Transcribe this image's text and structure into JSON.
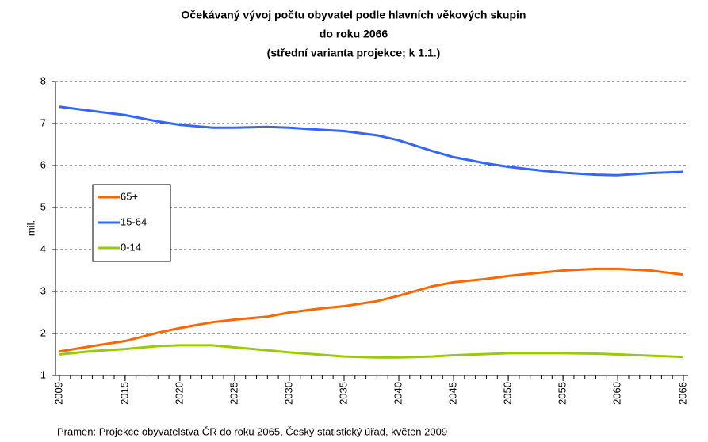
{
  "chart_data": {
    "type": "line",
    "title": [
      "Očekávaný vývoj počtu obyvatel podle hlavních věkových skupin",
      "do roku 2066",
      "(střední varianta projekce; k 1.1.)"
    ],
    "y_label": "mil.",
    "source": "Pramen: Projekce obyvatelstva ČR do roku 2065, Český statistický úřad, květen 2009",
    "x": [
      2009,
      2012,
      2015,
      2018,
      2020,
      2023,
      2025,
      2028,
      2030,
      2033,
      2035,
      2038,
      2040,
      2043,
      2045,
      2048,
      2050,
      2053,
      2055,
      2058,
      2060,
      2063,
      2066
    ],
    "series": [
      {
        "name": "65+",
        "color": "#ff6600",
        "values": [
          1.57,
          1.7,
          1.82,
          2.02,
          2.13,
          2.27,
          2.33,
          2.4,
          2.5,
          2.6,
          2.65,
          2.77,
          2.9,
          3.12,
          3.22,
          3.3,
          3.37,
          3.45,
          3.5,
          3.54,
          3.54,
          3.5,
          3.4
        ]
      },
      {
        "name": "15-64",
        "color": "#3366ff",
        "values": [
          7.4,
          7.3,
          7.2,
          7.05,
          6.97,
          6.9,
          6.9,
          6.92,
          6.9,
          6.85,
          6.82,
          6.72,
          6.6,
          6.35,
          6.2,
          6.05,
          5.97,
          5.88,
          5.83,
          5.78,
          5.77,
          5.82,
          5.85
        ]
      },
      {
        "name": "0-14",
        "color": "#99cc00",
        "values": [
          1.5,
          1.58,
          1.63,
          1.7,
          1.72,
          1.72,
          1.67,
          1.6,
          1.55,
          1.49,
          1.45,
          1.43,
          1.43,
          1.45,
          1.48,
          1.51,
          1.53,
          1.53,
          1.53,
          1.52,
          1.5,
          1.47,
          1.44
        ]
      }
    ],
    "xlim": [
      2009,
      2066
    ],
    "xticks": [
      2009,
      2015,
      2020,
      2025,
      2030,
      2035,
      2040,
      2045,
      2050,
      2055,
      2060,
      2066
    ],
    "ylim": [
      1,
      8
    ],
    "yticks": [
      1,
      2,
      3,
      4,
      5,
      6,
      7,
      8
    ],
    "grid": true
  }
}
